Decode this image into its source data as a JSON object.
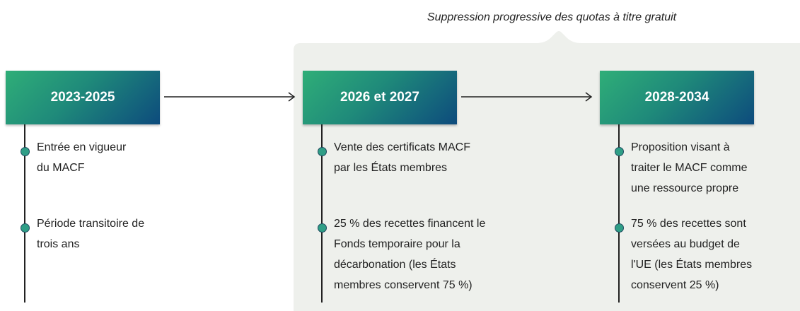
{
  "caption": "Suppression progressive des quotas à titre gratuit",
  "columns": [
    {
      "title": "2023-2025",
      "items": [
        [
          "Entrée en vigueur",
          "du MACF"
        ],
        [
          "Période transitoire de",
          "trois ans"
        ]
      ]
    },
    {
      "title": "2026 et 2027",
      "items": [
        [
          "Vente des certificats MACF",
          "par les États membres"
        ],
        [
          "25 % des recettes financent le",
          "Fonds temporaire pour la",
          "décarbonation (les États",
          "membres conservent 75 %)"
        ]
      ]
    },
    {
      "title": "2028-2034",
      "items": [
        [
          "Proposition visant à",
          "traiter le MACF comme",
          "une ressource propre"
        ],
        [
          "75 % des recettes sont",
          "versées au budget de",
          "l'UE (les États membres",
          "conservent 25 %)"
        ]
      ]
    }
  ]
}
